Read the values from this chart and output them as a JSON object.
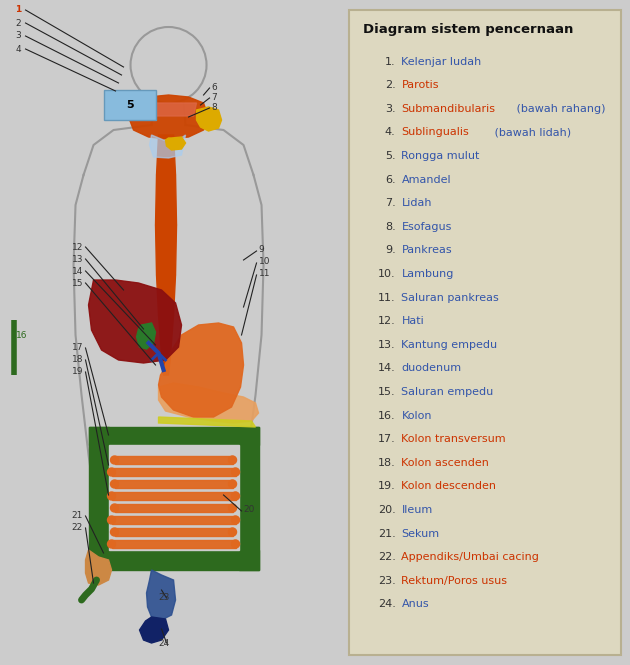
{
  "title": "Diagram sistem pencernaan",
  "bg_color": "#ccc8b8",
  "legend_bg": "#ddd8c0",
  "legend_border": "#b8b090",
  "left_bg": "#cccccc",
  "title_color": "#111111",
  "num_color": "#333333",
  "legend_items": [
    {
      "num": "1.",
      "text": "Kelenjar ludah",
      "color": "#3355aa",
      "mixed": false
    },
    {
      "num": "2.",
      "text": "Parotis",
      "color": "#cc3300",
      "mixed": false
    },
    {
      "num": "3.",
      "text_red": "Submandibularis",
      "text_blue": " (bawah rahang)",
      "mixed": true
    },
    {
      "num": "4.",
      "text_red": "Sublingualis",
      "text_blue": " (bawah lidah)",
      "mixed": true
    },
    {
      "num": "5.",
      "text": "Rongga mulut",
      "color": "#3355aa",
      "mixed": false
    },
    {
      "num": "6.",
      "text": "Amandel",
      "color": "#3355aa",
      "mixed": false
    },
    {
      "num": "7.",
      "text": "Lidah",
      "color": "#3355aa",
      "mixed": false
    },
    {
      "num": "8.",
      "text": "Esofagus",
      "color": "#3355aa",
      "mixed": false
    },
    {
      "num": "9.",
      "text": "Pankreas",
      "color": "#3355aa",
      "mixed": false
    },
    {
      "num": "10.",
      "text": "Lambung",
      "color": "#3355aa",
      "mixed": false
    },
    {
      "num": "11.",
      "text": "Saluran pankreas",
      "color": "#3355aa",
      "mixed": false
    },
    {
      "num": "12.",
      "text": "Hati",
      "color": "#3355aa",
      "mixed": false
    },
    {
      "num": "13.",
      "text": "Kantung empedu",
      "color": "#3355aa",
      "mixed": false
    },
    {
      "num": "14.",
      "text": "duodenum",
      "color": "#3355aa",
      "mixed": false
    },
    {
      "num": "15.",
      "text": "Saluran empedu",
      "color": "#3355aa",
      "mixed": false
    },
    {
      "num": "16.",
      "text": "Kolon",
      "color": "#3355aa",
      "mixed": false
    },
    {
      "num": "17.",
      "text": "Kolon transversum",
      "color": "#cc3300",
      "mixed": false
    },
    {
      "num": "18.",
      "text": "Kolon ascenden",
      "color": "#cc3300",
      "mixed": false
    },
    {
      "num": "19.",
      "text": "Kolon descenden",
      "color": "#cc3300",
      "mixed": false
    },
    {
      "num": "20.",
      "text": "Ileum",
      "color": "#3355aa",
      "mixed": false
    },
    {
      "num": "21.",
      "text": "Sekum",
      "color": "#3355aa",
      "mixed": false
    },
    {
      "num": "22.",
      "text": "Appendiks/Umbai cacing",
      "color": "#cc3300",
      "mixed": false
    },
    {
      "num": "23.",
      "text": "Rektum/Poros usus",
      "color": "#cc3300",
      "mixed": false
    },
    {
      "num": "24.",
      "text": "Anus",
      "color": "#3355aa",
      "mixed": false
    }
  ]
}
